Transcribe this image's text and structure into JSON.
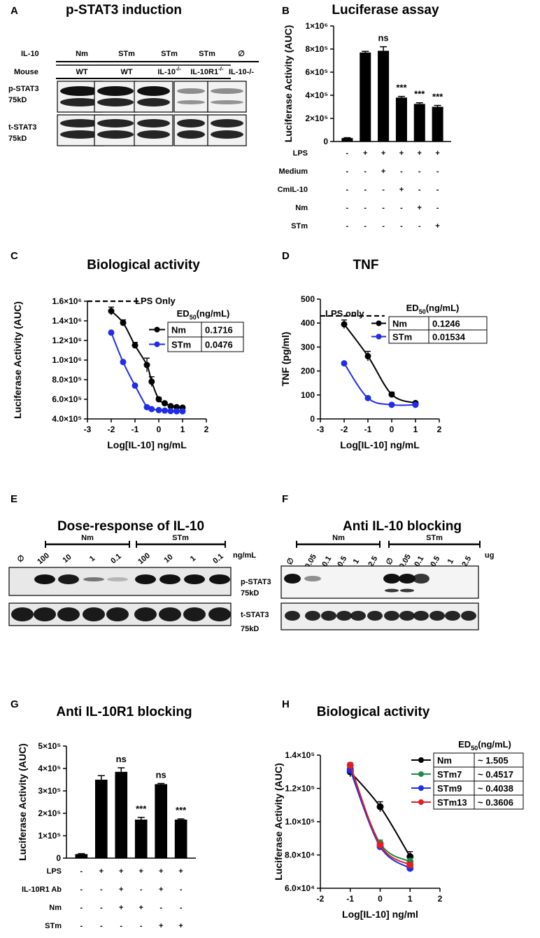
{
  "panels": {
    "A": "A",
    "B": "B",
    "C": "C",
    "D": "D",
    "E": "E",
    "F": "F",
    "G": "G",
    "H": "H"
  },
  "panelA": {
    "title": "p-STAT3 induction",
    "row1_label": "IL-10",
    "row2_label": "Mouse",
    "il10": [
      "Nm",
      "STm",
      "STm",
      "STm",
      "∅"
    ],
    "mouse": [
      "WT",
      "WT",
      "IL-10",
      "IL-10R1",
      "IL-10-/-"
    ],
    "mouse_sup": [
      "",
      "",
      "-/-",
      "-/-",
      ""
    ],
    "blot1": [
      "p-STAT3",
      "75kD"
    ],
    "blot2": [
      "t-STAT3",
      "75kD"
    ],
    "pstat3_intensity": [
      1.0,
      1.0,
      1.0,
      0.35,
      0.35
    ]
  },
  "chart_data": [
    {
      "panel": "B",
      "type": "bar",
      "title": "Luciferase assay",
      "ylabel": "Luciferase Activity (AUC)",
      "ylim": [
        0,
        1000000
      ],
      "yticks": [
        "0",
        "2×10⁵",
        "4×10⁵",
        "6×10⁵",
        "8×10⁵",
        "1×10⁶"
      ],
      "values": [
        30000,
        770000,
        785000,
        380000,
        325000,
        300000
      ],
      "errors": [
        3000,
        10000,
        35000,
        10000,
        10000,
        12000
      ],
      "significance": [
        "",
        "",
        "ns",
        "***",
        "***",
        "***"
      ],
      "conditions": [
        {
          "name": "LPS",
          "marks": [
            "-",
            "+",
            "+",
            "+",
            "+",
            "+"
          ]
        },
        {
          "name": "Medium",
          "marks": [
            "-",
            "-",
            "+",
            "-",
            "-",
            "-"
          ]
        },
        {
          "name": "CmIL-10",
          "marks": [
            "-",
            "-",
            "-",
            "+",
            "-",
            "-"
          ]
        },
        {
          "name": "Nm",
          "marks": [
            "-",
            "-",
            "-",
            "-",
            "+",
            "-"
          ]
        },
        {
          "name": "STm",
          "marks": [
            "-",
            "-",
            "-",
            "-",
            "-",
            "+"
          ]
        }
      ]
    },
    {
      "panel": "C",
      "type": "line",
      "title": "Biological activity",
      "xlabel": "Log[IL-10] ng/mL",
      "ylabel": "Luciferase Activity (AUC)",
      "xlim": [
        -3,
        2
      ],
      "ylim": [
        400000,
        1600000
      ],
      "xticks": [
        "-3",
        "-2",
        "-1",
        "0",
        "1",
        "2"
      ],
      "yticks": [
        "4.0×10⁵",
        "6.0×10⁵",
        "8.0×10⁵",
        "1.0×10⁶",
        "1.2×10⁶",
        "1.4×10⁶",
        "1.6×10⁶"
      ],
      "reference": {
        "label": "LPS Only",
        "y": 1600000
      },
      "legend_title": "ED50(ng/mL)",
      "series": [
        {
          "name": "Nm",
          "color": "#000000",
          "ed50": "0.1716",
          "x": [
            -2,
            -1.5,
            -1,
            -0.5,
            -0.3,
            0,
            0.25,
            0.5,
            0.75,
            1
          ],
          "y": [
            1500000,
            1380000,
            1150000,
            950000,
            780000,
            600000,
            560000,
            530000,
            520000,
            515000
          ],
          "err": [
            40000,
            30000,
            30000,
            70000,
            50000,
            20000,
            10000,
            10000,
            10000,
            10000
          ]
        },
        {
          "name": "STm",
          "color": "#1f2de6",
          "ed50": "0.0476",
          "x": [
            -2,
            -1.5,
            -1,
            -0.5,
            -0.3,
            0,
            0.25,
            0.5,
            0.75,
            1
          ],
          "y": [
            1280000,
            980000,
            740000,
            520000,
            500000,
            490000,
            485000,
            480000,
            478000,
            478000
          ],
          "err": [
            0,
            0,
            0,
            0,
            0,
            0,
            0,
            0,
            0,
            0
          ]
        }
      ]
    },
    {
      "panel": "D",
      "type": "line",
      "title": "TNF",
      "xlabel": "Log[IL-10] ng/mL",
      "ylabel": "TNF (pg/ml)",
      "xlim": [
        -3,
        2
      ],
      "ylim": [
        0,
        500
      ],
      "xticks": [
        "-3",
        "-2",
        "-1",
        "0",
        "1",
        "2"
      ],
      "yticks": [
        "0",
        "100",
        "200",
        "300",
        "400",
        "500"
      ],
      "reference": {
        "label": "LPS only",
        "y": 430
      },
      "legend_title": "ED50(ng/mL)",
      "series": [
        {
          "name": "Nm",
          "color": "#000000",
          "ed50": "0.1246",
          "x": [
            -2,
            -1,
            0,
            1
          ],
          "y": [
            395,
            262,
            102,
            66
          ],
          "err": [
            18,
            20,
            10,
            5
          ]
        },
        {
          "name": "STm",
          "color": "#1f2de6",
          "ed50": "0.01534",
          "x": [
            -2,
            -1,
            0,
            1
          ],
          "y": [
            232,
            87,
            59,
            59
          ],
          "err": [
            0,
            0,
            0,
            0
          ]
        }
      ]
    },
    {
      "panel": "G",
      "type": "bar",
      "title": "Anti IL-10R1 blocking",
      "ylabel": "Luciferase Activity (AUC)",
      "ylim": [
        0,
        500000
      ],
      "yticks": [
        "0",
        "1×10⁵",
        "2×10⁵",
        "3×10⁵",
        "4×10⁵",
        "5×10⁵"
      ],
      "values": [
        18000,
        350000,
        385000,
        172000,
        330000,
        172000
      ],
      "errors": [
        2000,
        18000,
        18000,
        10000,
        3000,
        3000
      ],
      "significance": [
        "",
        "",
        "ns",
        "***",
        "ns",
        "***"
      ],
      "conditions": [
        {
          "name": "LPS",
          "marks": [
            "-",
            "+",
            "+",
            "+",
            "+",
            "+"
          ]
        },
        {
          "name": "IL-10R1 Ab",
          "marks": [
            "-",
            "-",
            "+",
            "-",
            "+",
            "-"
          ]
        },
        {
          "name": "Nm",
          "marks": [
            "-",
            "-",
            "+",
            "+",
            "-",
            "-"
          ]
        },
        {
          "name": "STm",
          "marks": [
            "-",
            "-",
            "-",
            "-",
            "+",
            "+"
          ]
        }
      ]
    },
    {
      "panel": "H",
      "type": "line",
      "title": "Biological activity",
      "xlabel": "Log[IL-10] ng/ml",
      "ylabel": "Luciferase Activity (AUC)",
      "xlim": [
        -2,
        2
      ],
      "ylim": [
        60000,
        140000
      ],
      "xticks": [
        "-2",
        "-1",
        "0",
        "1",
        "2"
      ],
      "yticks": [
        "6.0×10⁴",
        "8.0×10⁴",
        "1.0×10⁵",
        "1.2×10⁵",
        "1.4×10⁵"
      ],
      "legend_title": "ED50(ng/mL)",
      "series": [
        {
          "name": "Nm",
          "color": "#000000",
          "ed50": "~ 1.505",
          "x": [
            -1,
            0,
            1
          ],
          "y": [
            130000,
            109000,
            79000
          ],
          "err": [
            3000,
            3000,
            3000
          ]
        },
        {
          "name": "STm7",
          "color": "#1e8a4a",
          "ed50": "~ 0.4517",
          "x": [
            -1,
            0,
            1
          ],
          "y": [
            132000,
            87000,
            76000
          ],
          "err": [
            2000,
            2000,
            2000
          ]
        },
        {
          "name": "STm9",
          "color": "#1f2de6",
          "ed50": "~ 0.4038",
          "x": [
            -1,
            0,
            1
          ],
          "y": [
            131000,
            85000,
            72000
          ],
          "err": [
            2000,
            2000,
            2000
          ]
        },
        {
          "name": "STm13",
          "color": "#e02020",
          "ed50": "~ 0.3606",
          "x": [
            -1,
            0,
            1
          ],
          "y": [
            134000,
            86000,
            74000
          ],
          "err": [
            1500,
            1500,
            1500
          ]
        }
      ]
    }
  ],
  "panelE": {
    "title": "Dose-response of IL-10",
    "group1": "Nm",
    "group2": "STm",
    "lanes": [
      "∅",
      "100",
      "10",
      "1",
      "0.1",
      "100",
      "10",
      "1",
      "0.1"
    ],
    "unit": "ng/mL",
    "band_intensity": [
      0,
      1.0,
      0.95,
      0.45,
      0.1,
      1.0,
      1.0,
      1.0,
      1.0
    ]
  },
  "panelF": {
    "title": "Anti IL-10 blocking",
    "group1": "Nm",
    "group2": "STm",
    "lanes": [
      "∅",
      "0.05",
      "0.1",
      "0.5",
      "1",
      "2.5",
      "∅",
      "0.05",
      "0.1",
      "0.5",
      "1",
      "2.5"
    ],
    "unit": "ug",
    "blot1": [
      "p-STAT3",
      "75kD"
    ],
    "blot2": [
      "t-STAT3",
      "75kD"
    ],
    "band_intensity": [
      1.0,
      0.35,
      0,
      0,
      0,
      0,
      1.0,
      1.0,
      0.8,
      0,
      0,
      0
    ]
  }
}
